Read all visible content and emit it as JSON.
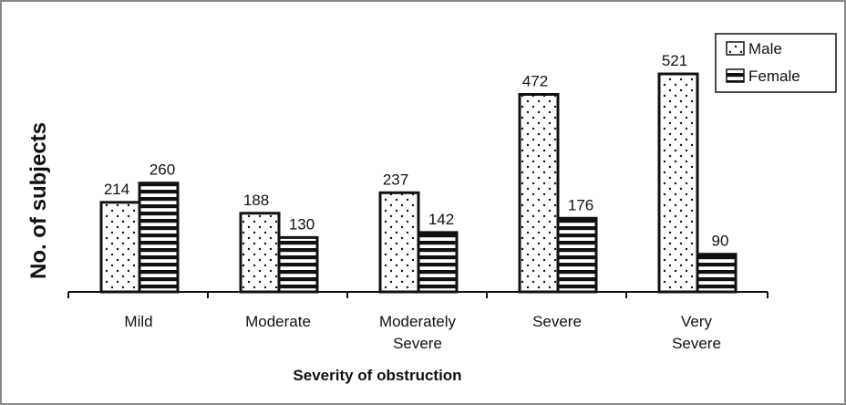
{
  "chart_data": {
    "type": "bar",
    "title": "",
    "xlabel": "Severity of obstruction",
    "ylabel": "No. of subjects",
    "categories": [
      [
        "Mild"
      ],
      [
        "Moderate"
      ],
      [
        "Moderately",
        "Severe"
      ],
      [
        "Severe"
      ],
      [
        "Very",
        "Severe"
      ]
    ],
    "series": [
      {
        "name": "Male",
        "pattern": "dots",
        "values": [
          214,
          188,
          237,
          472,
          521
        ]
      },
      {
        "name": "Female",
        "pattern": "stripes",
        "values": [
          260,
          130,
          142,
          176,
          90
        ]
      }
    ],
    "ylim": [
      0,
      560
    ],
    "grid": false,
    "legend_position": "top-right",
    "colors": {
      "stroke": "#111111",
      "background": "#ffffff",
      "frame": "#888888"
    }
  }
}
